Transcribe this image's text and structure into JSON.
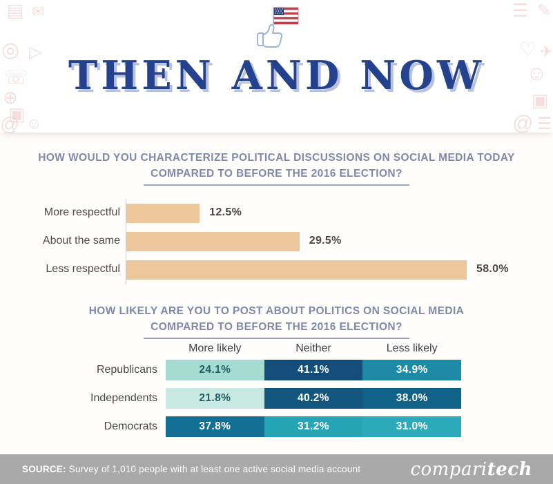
{
  "header": {
    "title": "THEN AND NOW"
  },
  "flag_icon_name": "thumbs-up-american-flag-icon",
  "chart_data": [
    {
      "type": "bar",
      "orientation": "horizontal",
      "title": "HOW WOULD YOU CHARACTERIZE POLITICAL DISCUSSIONS ON SOCIAL MEDIA TODAY COMPARED TO BEFORE THE 2016 ELECTION?",
      "title_line1": "HOW WOULD YOU CHARACTERIZE POLITICAL DISCUSSIONS ON SOCIAL MEDIA TODAY",
      "title_line2": "COMPARED TO BEFORE THE 2016 ELECTION?",
      "categories": [
        "More respectful",
        "About the same",
        "Less respectful"
      ],
      "values": [
        12.5,
        29.5,
        58.0
      ],
      "value_labels": [
        "12.5%",
        "29.5%",
        "58.0%"
      ],
      "bar_color": "#ecc79c",
      "xlim": [
        0,
        68
      ],
      "grid": false,
      "legend": "none"
    },
    {
      "type": "heatmap",
      "title": "HOW LIKELY ARE YOU TO POST ABOUT POLITICS ON SOCIAL MEDIA COMPARED TO BEFORE THE 2016 ELECTION?",
      "title_line1": "HOW LIKELY ARE YOU TO POST ABOUT POLITICS ON SOCIAL MEDIA",
      "title_line2": "COMPARED TO BEFORE THE 2016 ELECTION?",
      "columns": [
        "More likely",
        "Neither",
        "Less likely"
      ],
      "rows": [
        "Republicans",
        "Independents",
        "Democrats"
      ],
      "values": [
        [
          24.1,
          41.1,
          34.9
        ],
        [
          21.8,
          40.2,
          38.0
        ],
        [
          37.8,
          31.2,
          31.0
        ]
      ],
      "cell_labels": [
        [
          "24.1%",
          "41.1%",
          "34.9%"
        ],
        [
          "21.8%",
          "40.2%",
          "38.0%"
        ],
        [
          "37.8%",
          "31.2%",
          "31.0%"
        ]
      ],
      "cell_colors": [
        [
          "#a5dbd1",
          "#134d7a",
          "#1d8ba6"
        ],
        [
          "#c8e9e1",
          "#135781",
          "#116289"
        ],
        [
          "#136f93",
          "#26a3b4",
          "#2caaba"
        ]
      ],
      "cell_text_colors": [
        [
          "#235e66",
          "#ffffff",
          "#ffffff"
        ],
        [
          "#235e66",
          "#ffffff",
          "#ffffff"
        ],
        [
          "#ffffff",
          "#ffffff",
          "#ffffff"
        ]
      ],
      "layout_hint": "equal-width cells, color darkness encodes value"
    }
  ],
  "footer": {
    "source_label": "SOURCE:",
    "source_text": "Survey of 1,010 people with at least one active social media account",
    "brand_regular": "compari",
    "brand_bold": "tech",
    "bar_color": "#a9a9a9"
  },
  "colors": {
    "title_navy": "#24418d",
    "title_shadow": "#b9c2dc",
    "question_text": "#7f88ab",
    "bar_tan": "#ecc79c",
    "footer_gray": "#a9a9a9",
    "deco_pink": "#eec4c4"
  },
  "decorations": [
    {
      "name": "browser-window-icon",
      "glyph": "▤"
    },
    {
      "name": "mail-icon",
      "glyph": "✉"
    },
    {
      "name": "globe-icon",
      "glyph": "◎"
    },
    {
      "name": "video-play-icon",
      "glyph": "▷"
    },
    {
      "name": "phone-icon",
      "glyph": "☏"
    },
    {
      "name": "globe-grid-icon",
      "glyph": "⊕"
    },
    {
      "name": "photo-grid-icon",
      "glyph": "▣"
    },
    {
      "name": "at-mention-icon",
      "glyph": "@"
    },
    {
      "name": "smiley-icon",
      "glyph": "☺"
    },
    {
      "name": "news-list-icon",
      "glyph": "☰"
    },
    {
      "name": "pencil-icon",
      "glyph": "✎"
    },
    {
      "name": "heart-like-icon",
      "glyph": "♡"
    },
    {
      "name": "paper-plane-icon",
      "glyph": "✈"
    },
    {
      "name": "user-avatar-icon",
      "glyph": "☺"
    },
    {
      "name": "photo-grid-icon",
      "glyph": "▣"
    },
    {
      "name": "at-mention-icon",
      "glyph": "@"
    },
    {
      "name": "news-list-icon",
      "glyph": "☰"
    }
  ]
}
